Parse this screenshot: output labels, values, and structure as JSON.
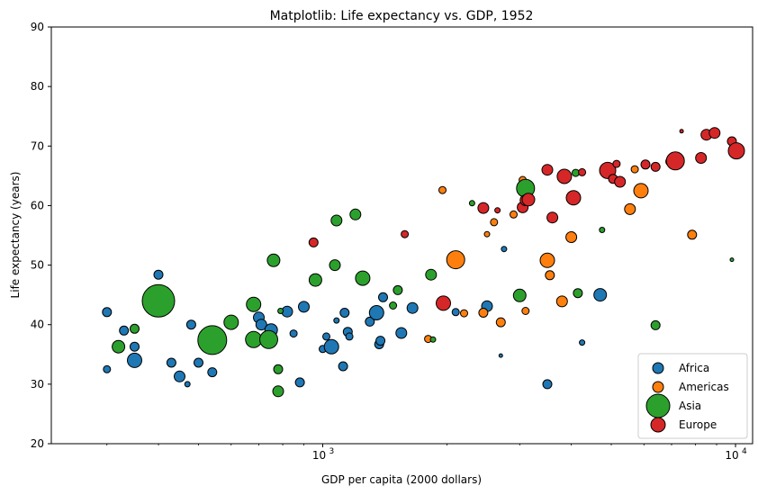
{
  "chart_data": {
    "type": "scatter",
    "title": "Matplotlib: Life expectancy vs. GDP, 1952",
    "xlabel": "GDP per capita (2000 dollars)",
    "ylabel": "Life expectancy (years)",
    "xscale": "log",
    "xlim": [
      220,
      11000
    ],
    "ylim": [
      20,
      90
    ],
    "x_ticks": [
      {
        "value": 1000,
        "base": "10",
        "exp": "3"
      },
      {
        "value": 10000,
        "base": "10",
        "exp": "4"
      }
    ],
    "y_ticks": [
      20,
      30,
      40,
      50,
      60,
      70,
      80,
      90
    ],
    "legend_position": "lower right",
    "grid": false,
    "series": [
      {
        "name": "Africa",
        "color": "#1f77b4",
        "points": [
          [
            300,
            42.1,
            5
          ],
          [
            300,
            32.5,
            4
          ],
          [
            330,
            39.0,
            5
          ],
          [
            350,
            36.3,
            5
          ],
          [
            350,
            34.0,
            8
          ],
          [
            400,
            48.4,
            5
          ],
          [
            430,
            33.6,
            5
          ],
          [
            450,
            31.3,
            6
          ],
          [
            470,
            30.0,
            3
          ],
          [
            480,
            40.0,
            5
          ],
          [
            500,
            33.6,
            5
          ],
          [
            540,
            32.0,
            5
          ],
          [
            700,
            41.2,
            6
          ],
          [
            710,
            40.0,
            6
          ],
          [
            750,
            39.1,
            7
          ],
          [
            820,
            42.2,
            6
          ],
          [
            850,
            38.5,
            4
          ],
          [
            880,
            30.3,
            5
          ],
          [
            900,
            43.0,
            6
          ],
          [
            1000,
            35.9,
            4
          ],
          [
            1020,
            38.0,
            4
          ],
          [
            1050,
            36.3,
            8
          ],
          [
            1080,
            40.7,
            3
          ],
          [
            1120,
            33.0,
            5
          ],
          [
            1130,
            42.0,
            5
          ],
          [
            1150,
            38.8,
            5
          ],
          [
            1160,
            38.0,
            4
          ],
          [
            1300,
            40.5,
            5
          ],
          [
            1350,
            42.0,
            8
          ],
          [
            1370,
            36.7,
            5
          ],
          [
            1380,
            37.3,
            5
          ],
          [
            1400,
            44.6,
            5
          ],
          [
            1550,
            38.6,
            6
          ],
          [
            1650,
            42.8,
            6
          ],
          [
            2100,
            42.1,
            4
          ],
          [
            2500,
            43.1,
            6
          ],
          [
            2700,
            34.8,
            2
          ],
          [
            2750,
            52.7,
            3
          ],
          [
            3500,
            30.0,
            5
          ],
          [
            4250,
            37.0,
            3
          ],
          [
            4700,
            45.0,
            7
          ]
        ]
      },
      {
        "name": "Americas",
        "color": "#ff7f0e",
        "points": [
          [
            1800,
            37.6,
            4
          ],
          [
            1950,
            62.6,
            4
          ],
          [
            2200,
            41.9,
            4
          ],
          [
            2450,
            42.0,
            5
          ],
          [
            2500,
            55.2,
            3
          ],
          [
            2600,
            57.2,
            4
          ],
          [
            2700,
            40.4,
            5
          ],
          [
            2900,
            58.5,
            4
          ],
          [
            3050,
            64.3,
            4
          ],
          [
            3100,
            42.3,
            4
          ],
          [
            3500,
            50.8,
            8
          ],
          [
            3550,
            48.3,
            5
          ],
          [
            3800,
            43.9,
            6
          ],
          [
            4000,
            54.7,
            6
          ],
          [
            5550,
            59.4,
            6
          ],
          [
            5700,
            66.1,
            4
          ],
          [
            5900,
            62.5,
            8
          ],
          [
            7200,
            67.0,
            4
          ],
          [
            7850,
            55.1,
            5
          ],
          [
            2100,
            50.9,
            10
          ]
        ]
      },
      {
        "name": "Asia",
        "color": "#2ca02c",
        "points": [
          [
            320,
            36.3,
            7
          ],
          [
            350,
            39.3,
            5
          ],
          [
            400,
            44.0,
            18
          ],
          [
            540,
            37.4,
            16
          ],
          [
            600,
            40.4,
            8
          ],
          [
            680,
            43.4,
            8
          ],
          [
            680,
            37.5,
            9
          ],
          [
            740,
            37.5,
            10
          ],
          [
            760,
            50.8,
            7
          ],
          [
            780,
            32.5,
            5
          ],
          [
            780,
            28.8,
            6
          ],
          [
            790,
            42.3,
            3
          ],
          [
            960,
            47.5,
            7
          ],
          [
            1080,
            57.5,
            6
          ],
          [
            1070,
            50.0,
            6
          ],
          [
            1200,
            58.5,
            6
          ],
          [
            1250,
            47.8,
            8
          ],
          [
            1480,
            43.2,
            4
          ],
          [
            1520,
            45.8,
            5
          ],
          [
            1830,
            48.4,
            6
          ],
          [
            1850,
            37.5,
            3
          ],
          [
            2300,
            60.4,
            3
          ],
          [
            3000,
            44.9,
            7
          ],
          [
            3100,
            62.9,
            10
          ],
          [
            4150,
            45.3,
            5
          ],
          [
            4750,
            55.9,
            3
          ],
          [
            6400,
            39.9,
            5
          ],
          [
            9800,
            50.9,
            2
          ],
          [
            4100,
            65.5,
            4
          ]
        ]
      },
      {
        "name": "Europe",
        "color": "#d62728",
        "points": [
          [
            950,
            53.8,
            5
          ],
          [
            1580,
            55.2,
            4
          ],
          [
            1960,
            43.6,
            8
          ],
          [
            2450,
            59.6,
            6
          ],
          [
            2650,
            59.2,
            3
          ],
          [
            3050,
            59.7,
            6
          ],
          [
            3100,
            60.9,
            6
          ],
          [
            3150,
            61.0,
            7
          ],
          [
            3500,
            66.0,
            6
          ],
          [
            3600,
            58.0,
            6
          ],
          [
            3850,
            64.9,
            8
          ],
          [
            4050,
            61.3,
            8
          ],
          [
            4250,
            65.6,
            4
          ],
          [
            4900,
            65.9,
            9
          ],
          [
            5050,
            64.5,
            5
          ],
          [
            5150,
            67.0,
            4
          ],
          [
            5250,
            64.0,
            6
          ],
          [
            6050,
            66.9,
            5
          ],
          [
            6400,
            66.5,
            5
          ],
          [
            6950,
            67.4,
            5
          ],
          [
            7150,
            67.5,
            10
          ],
          [
            7400,
            72.5,
            2
          ],
          [
            8250,
            68.0,
            6
          ],
          [
            8500,
            71.9,
            6
          ],
          [
            8900,
            72.2,
            6
          ],
          [
            9800,
            70.8,
            5
          ],
          [
            10050,
            69.2,
            9
          ]
        ]
      }
    ]
  }
}
